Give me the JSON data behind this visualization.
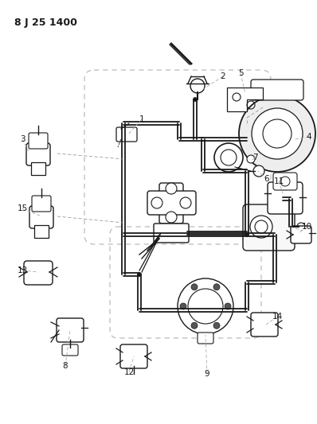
{
  "title": "8 J 25 1400",
  "bg_color": "#ffffff",
  "line_color": "#1a1a1a",
  "dashed_color": "#aaaaaa",
  "title_fontsize": 9,
  "label_fontsize": 7.5,
  "figsize": [
    3.98,
    5.33
  ],
  "dpi": 100
}
